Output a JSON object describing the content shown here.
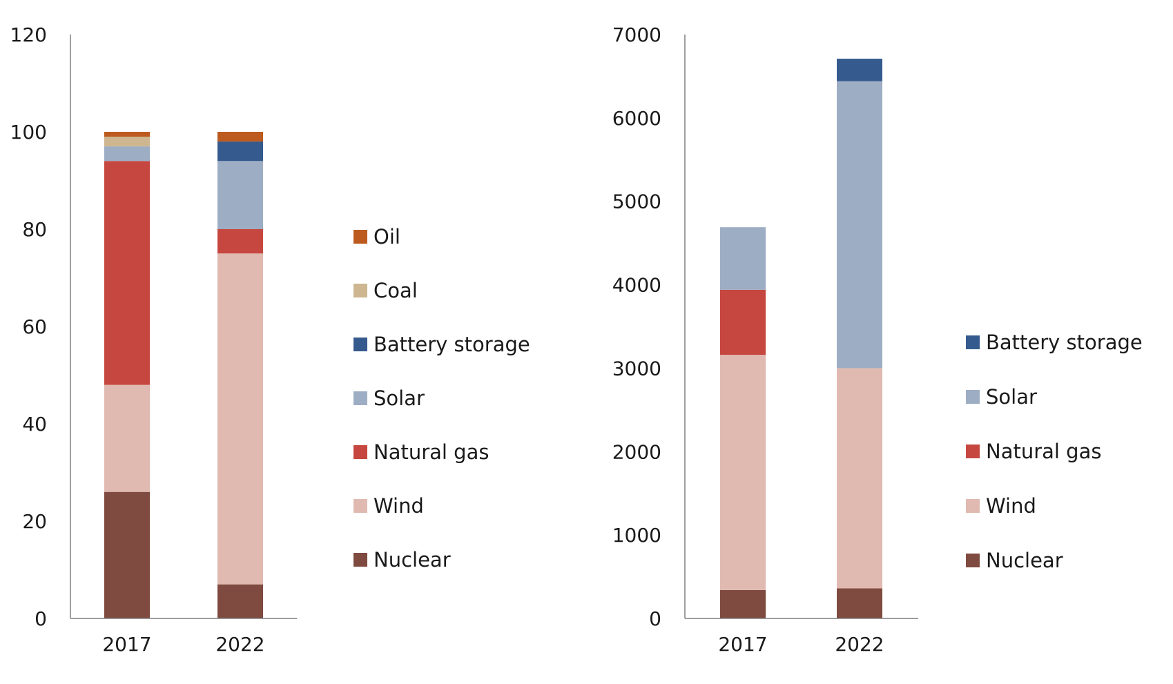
{
  "chart_data": [
    {
      "type": "bar",
      "stacked": true,
      "categories": [
        "2017",
        "2022"
      ],
      "ylim": [
        0,
        120
      ],
      "yticks": [
        "0",
        "20",
        "40",
        "60",
        "80",
        "100",
        "120"
      ],
      "grid": false,
      "legend": "right",
      "series": [
        {
          "name": "Nuclear",
          "color": "#7f4a40",
          "values": [
            26,
            7
          ]
        },
        {
          "name": "Wind",
          "color": "#e0bab1",
          "values": [
            22,
            68
          ]
        },
        {
          "name": "Natural gas",
          "color": "#c6473f",
          "values": [
            46,
            5
          ]
        },
        {
          "name": "Solar",
          "color": "#9dadc3",
          "values": [
            3,
            14
          ]
        },
        {
          "name": "Battery storage",
          "color": "#355a8e",
          "values": [
            0,
            4
          ]
        },
        {
          "name": "Coal",
          "color": "#cdb690",
          "values": [
            2,
            0
          ]
        },
        {
          "name": "Oil",
          "color": "#bd5a1f",
          "values": [
            1,
            2
          ]
        }
      ]
    },
    {
      "type": "bar",
      "stacked": true,
      "categories": [
        "2017",
        "2022"
      ],
      "ylim": [
        0,
        7000
      ],
      "yticks": [
        "0",
        "1000",
        "2000",
        "3000",
        "4000",
        "5000",
        "6000",
        "7000"
      ],
      "grid": false,
      "legend": "right",
      "series": [
        {
          "name": "Nuclear",
          "color": "#7f4a40",
          "values": [
            340,
            360
          ]
        },
        {
          "name": "Wind",
          "color": "#e0bab1",
          "values": [
            2820,
            2640
          ]
        },
        {
          "name": "Natural gas",
          "color": "#c6473f",
          "values": [
            780,
            0
          ]
        },
        {
          "name": "Solar",
          "color": "#9dadc3",
          "values": [
            750,
            3440
          ]
        },
        {
          "name": "Battery storage",
          "color": "#355a8e",
          "values": [
            0,
            270
          ]
        }
      ]
    }
  ]
}
